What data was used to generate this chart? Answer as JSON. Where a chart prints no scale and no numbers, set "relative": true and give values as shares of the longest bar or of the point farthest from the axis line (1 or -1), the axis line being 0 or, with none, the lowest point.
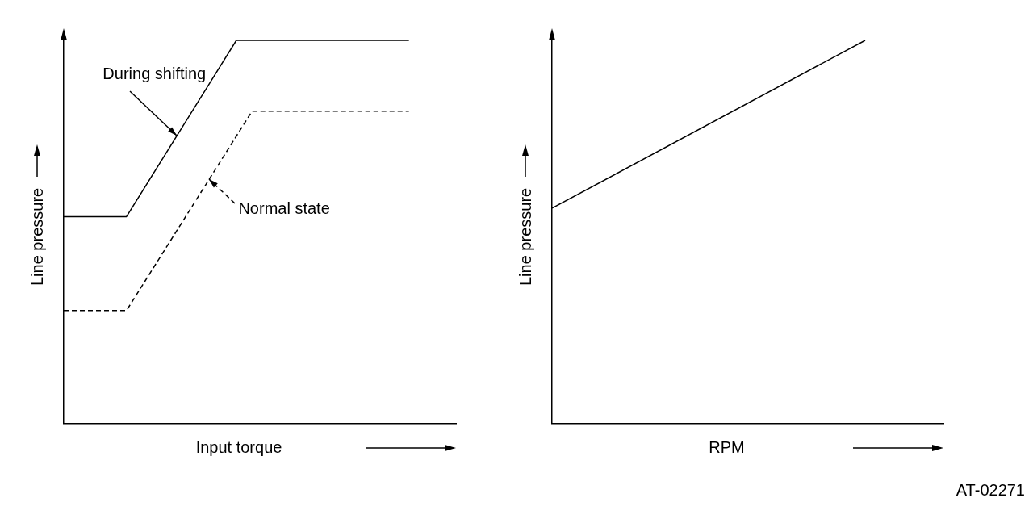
{
  "chart_data": [
    {
      "type": "line",
      "relative": true,
      "xlabel": "Input torque",
      "ylabel": "Line pressure",
      "legend": false,
      "grid": false,
      "marker": "none",
      "categories": [
        null,
        null,
        null,
        null,
        null,
        null,
        null,
        null,
        null,
        null,
        null,
        null,
        null,
        null,
        null,
        null,
        null,
        null,
        null,
        null,
        null,
        null,
        null,
        null,
        null,
        null
      ],
      "series": [
        {
          "name": "During shifting",
          "color": "#000000",
          "line_style": "solid",
          "values": [
            0.54,
            null,
            null,
            null,
            0.54,
            null,
            null,
            null,
            null,
            null,
            null,
            1,
            null,
            null,
            null,
            null,
            null,
            null,
            null,
            null,
            null,
            null,
            1,
            null,
            null,
            null
          ]
        },
        {
          "name": "Normal state",
          "color": "#000000",
          "line_style": "dashed",
          "values": [
            0.295,
            null,
            null,
            null,
            0.295,
            null,
            null,
            null,
            null,
            null,
            null,
            null,
            0.815,
            null,
            null,
            null,
            null,
            null,
            null,
            null,
            null,
            null,
            0.815,
            null,
            null,
            null
          ]
        }
      ]
    },
    {
      "type": "line",
      "relative": true,
      "xlabel": "RPM",
      "ylabel": "Line pressure",
      "legend": false,
      "grid": false,
      "marker": "none",
      "categories": [
        null,
        null,
        null,
        null,
        null,
        null,
        null,
        null,
        null,
        null,
        null,
        null,
        null,
        null,
        null,
        null,
        null,
        null,
        null,
        null,
        null,
        null,
        null,
        null,
        null,
        null
      ],
      "series": [
        {
          "color": "#000000",
          "line_style": "solid",
          "values": [
            0.562,
            null,
            null,
            null,
            null,
            null,
            null,
            null,
            null,
            null,
            null,
            null,
            null,
            null,
            null,
            null,
            null,
            null,
            null,
            null,
            1,
            null,
            null,
            null,
            null,
            null
          ]
        }
      ],
      "annotations": [
        "AT-02271"
      ]
    }
  ]
}
